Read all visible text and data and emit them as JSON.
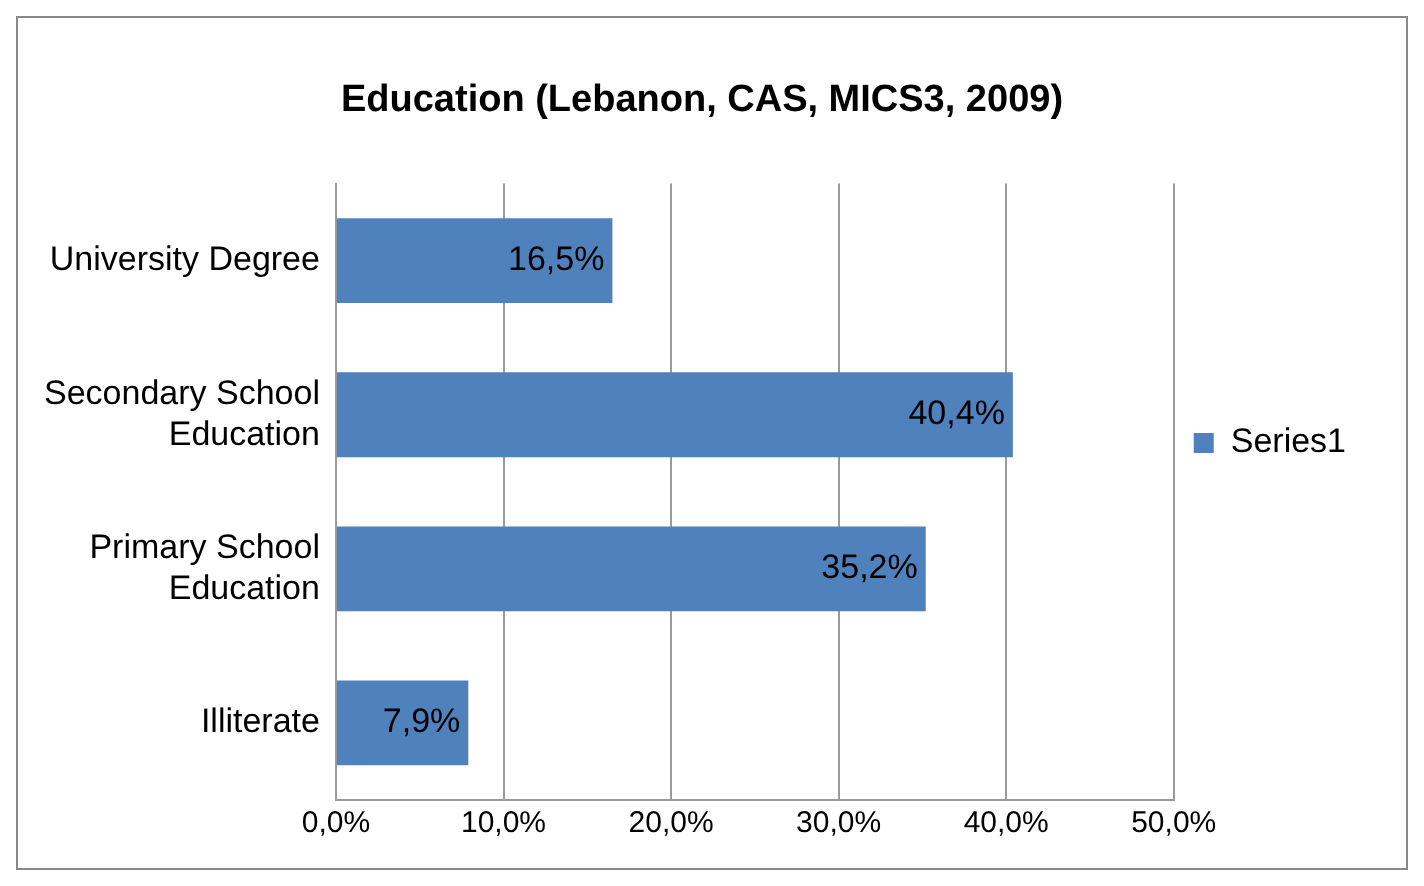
{
  "chart_data": {
    "type": "bar",
    "orientation": "horizontal",
    "title": "Education (Lebanon, CAS, MICS3, 2009)",
    "categories": [
      "University Degree",
      "Secondary School Education",
      "Primary School Education",
      "Illiterate"
    ],
    "series": [
      {
        "name": "Series1",
        "color": "#4f81bd",
        "values": [
          16.5,
          40.4,
          35.2,
          7.9
        ],
        "value_labels": [
          "16,5%",
          "40,4%",
          "35,2%",
          "7,9%"
        ]
      }
    ],
    "xlim": [
      0,
      50
    ],
    "xticks": [
      {
        "value": 0,
        "label": "0,0%"
      },
      {
        "value": 10,
        "label": "10,0%"
      },
      {
        "value": 20,
        "label": "20,0%"
      },
      {
        "value": 30,
        "label": "30,0%"
      },
      {
        "value": 40,
        "label": "40,0%"
      },
      {
        "value": 50,
        "label": "50,0%"
      }
    ],
    "grid": "x",
    "legend": "right"
  }
}
